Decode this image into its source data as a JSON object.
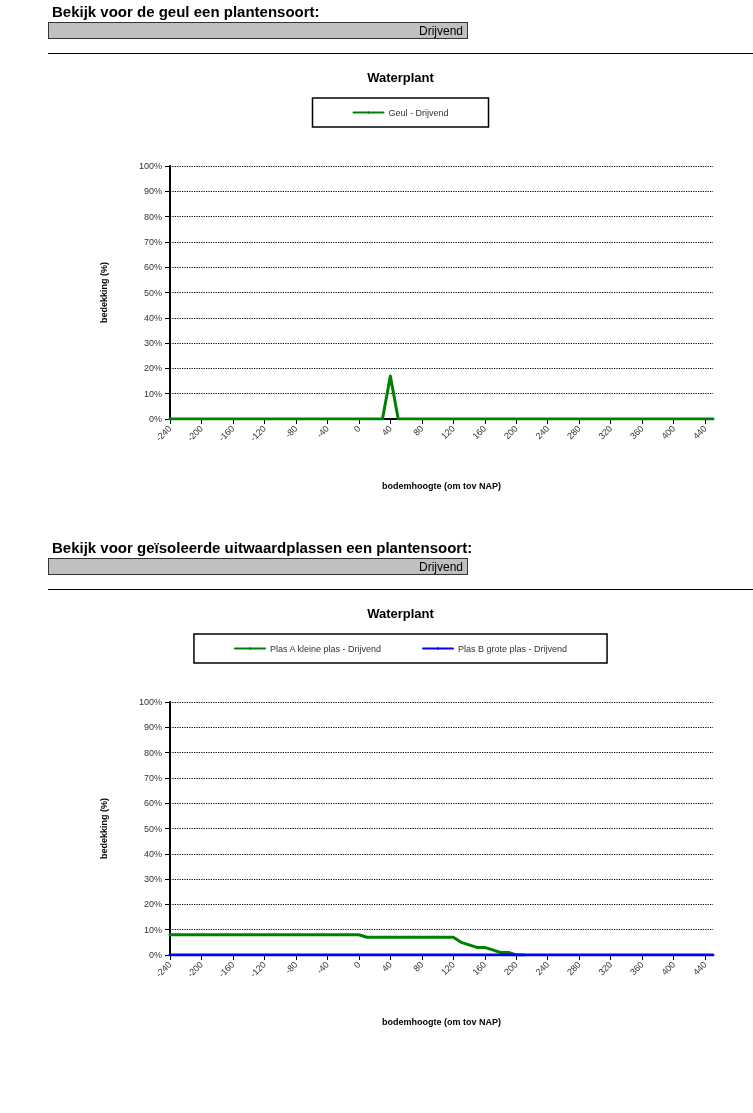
{
  "chart_data": [
    {
      "type": "line",
      "title": "Waterplant",
      "xlabel": "bodemhoogte (om tov NAP)",
      "ylabel": "bedekking (%)",
      "annotations": [
        "Bekijk voor de geul een plantensoort:",
        "Drijvend"
      ],
      "x": [
        -240,
        -230,
        -220,
        -210,
        -200,
        -190,
        -180,
        -170,
        -160,
        -150,
        -140,
        -130,
        -120,
        -110,
        -100,
        -90,
        -80,
        -70,
        -60,
        -50,
        -40,
        -30,
        -20,
        -10,
        0,
        10,
        20,
        30,
        40,
        50,
        60,
        70,
        80,
        90,
        100,
        110,
        120,
        130,
        140,
        150,
        160,
        170,
        180,
        190,
        200,
        210,
        220,
        230,
        240,
        250,
        260,
        270,
        280,
        290,
        300,
        310,
        320,
        330,
        340,
        350,
        360,
        370,
        380,
        390,
        400,
        410,
        420,
        430,
        440,
        450
      ],
      "series": [
        {
          "name": "Geul - Drijvend",
          "color": "#008000",
          "values": [
            0,
            0,
            0,
            0,
            0,
            0,
            0,
            0,
            0,
            0,
            0,
            0,
            0,
            0,
            0,
            0,
            0,
            0,
            0,
            0,
            0,
            0,
            0,
            0,
            0,
            0,
            0,
            0,
            17,
            0,
            0,
            0,
            0,
            0,
            0,
            0,
            0,
            0,
            0,
            0,
            0,
            0,
            0,
            0,
            0,
            0,
            0,
            0,
            0,
            0,
            0,
            0,
            0,
            0,
            0,
            0,
            0,
            0,
            0,
            0,
            0,
            0,
            0,
            0,
            0,
            0,
            0,
            0,
            0,
            0
          ]
        }
      ],
      "xlim": [
        -240,
        450
      ],
      "xticks": [
        -240,
        -200,
        -160,
        -120,
        -80,
        -40,
        0,
        40,
        80,
        120,
        160,
        200,
        240,
        280,
        320,
        360,
        400,
        440
      ],
      "ylim": [
        0,
        100
      ],
      "yticks": [
        {
          "value": 0,
          "label": "0%"
        },
        {
          "value": 10,
          "label": "10%"
        },
        {
          "value": 20,
          "label": "20%"
        },
        {
          "value": 30,
          "label": "30%"
        },
        {
          "value": 40,
          "label": "40%"
        },
        {
          "value": 50,
          "label": "50%"
        },
        {
          "value": 60,
          "label": "60%"
        },
        {
          "value": 70,
          "label": "70%"
        },
        {
          "value": 80,
          "label": "80%"
        },
        {
          "value": 90,
          "label": "90%"
        },
        {
          "value": 100,
          "label": "100%"
        }
      ],
      "grid": "y",
      "legend": "top",
      "marker": "none",
      "line_style": "solid"
    },
    {
      "type": "line",
      "title": "Waterplant",
      "xlabel": "bodemhoogte (om tov NAP)",
      "ylabel": "bedekking (%)",
      "annotations": [
        "Bekijk voor geïsoleerde uitwaardplassen een plantensoort:",
        "Drijvend"
      ],
      "x": [
        -240,
        -230,
        -220,
        -210,
        -200,
        -190,
        -180,
        -170,
        -160,
        -150,
        -140,
        -130,
        -120,
        -110,
        -100,
        -90,
        -80,
        -70,
        -60,
        -50,
        -40,
        -30,
        -20,
        -10,
        0,
        10,
        20,
        30,
        40,
        50,
        60,
        70,
        80,
        90,
        100,
        110,
        120,
        130,
        140,
        150,
        160,
        170,
        180,
        190,
        200,
        210,
        220,
        230,
        240,
        250,
        260,
        270,
        280,
        290,
        300,
        310,
        320,
        330,
        340,
        350,
        360,
        370,
        380,
        390,
        400,
        410,
        420,
        430,
        440,
        450
      ],
      "series": [
        {
          "name": "Plas A kleine plas - Drijvend",
          "color": "#008000",
          "values": [
            8,
            8,
            8,
            8,
            8,
            8,
            8,
            8,
            8,
            8,
            8,
            8,
            8,
            8,
            8,
            8,
            8,
            8,
            8,
            8,
            8,
            8,
            8,
            8,
            8,
            7,
            7,
            7,
            7,
            7,
            7,
            7,
            7,
            7,
            7,
            7,
            7,
            5,
            4,
            3,
            3,
            2,
            1,
            1,
            0,
            0,
            null,
            null,
            null,
            null,
            null,
            null,
            null,
            null,
            null,
            null,
            null,
            null,
            null,
            null,
            null,
            null,
            null,
            null,
            null,
            null,
            null,
            null,
            null,
            null
          ]
        },
        {
          "name": "Plas B grote plas - Drijvend",
          "color": "#0000ff",
          "values": [
            0,
            0,
            0,
            0,
            0,
            0,
            0,
            0,
            0,
            0,
            0,
            0,
            0,
            0,
            0,
            0,
            0,
            0,
            0,
            0,
            0,
            0,
            0,
            0,
            0,
            0,
            0,
            0,
            0,
            0,
            0,
            0,
            0,
            0,
            0,
            0,
            0,
            0,
            0,
            0,
            0,
            0,
            0,
            0,
            0,
            0,
            0,
            0,
            0,
            0,
            0,
            0,
            0,
            0,
            0,
            0,
            0,
            0,
            0,
            0,
            0,
            0,
            0,
            0,
            0,
            0,
            0,
            0,
            0,
            0
          ]
        }
      ],
      "xlim": [
        -240,
        450
      ],
      "xticks": [
        -240,
        -200,
        -160,
        -120,
        -80,
        -40,
        0,
        40,
        80,
        120,
        160,
        200,
        240,
        280,
        320,
        360,
        400,
        440
      ],
      "ylim": [
        0,
        100
      ],
      "yticks": [
        {
          "value": 0,
          "label": "0%"
        },
        {
          "value": 10,
          "label": "10%"
        },
        {
          "value": 20,
          "label": "20%"
        },
        {
          "value": 30,
          "label": "30%"
        },
        {
          "value": 40,
          "label": "40%"
        },
        {
          "value": 50,
          "label": "50%"
        },
        {
          "value": 60,
          "label": "60%"
        },
        {
          "value": 70,
          "label": "70%"
        },
        {
          "value": 80,
          "label": "80%"
        },
        {
          "value": 90,
          "label": "90%"
        },
        {
          "value": 100,
          "label": "100%"
        }
      ],
      "grid": "y",
      "legend": "top",
      "marker": "none",
      "line_style": "solid"
    }
  ]
}
